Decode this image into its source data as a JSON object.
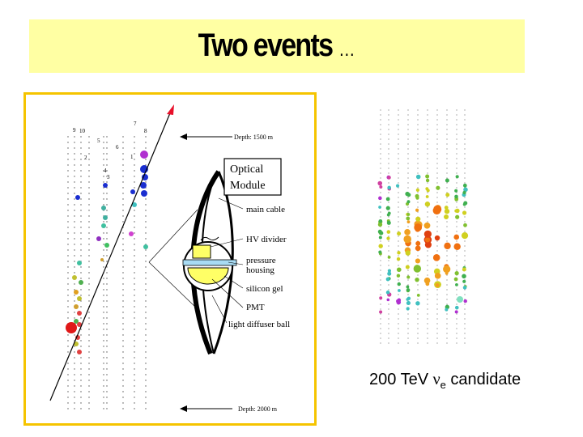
{
  "title": {
    "main": "Two events",
    "ellipsis": "…"
  },
  "left_diagram": {
    "depth_top": "Depth: 1500 m",
    "depth_bottom": "Depth: 2000 m",
    "string_numbers": [
      "9",
      "10",
      "2",
      "5",
      "6",
      "7",
      "8",
      "1",
      "4",
      "3"
    ],
    "module_title_line1": "Optical",
    "module_title_line2": "Module",
    "labels": [
      "main cable",
      "HV divider",
      "pressure",
      "housing",
      "silicon gel",
      "PMT",
      "light diffuser ball"
    ]
  },
  "right_caption": {
    "prefix": "200 TeV ",
    "nu": "ν",
    "sub": "e",
    "suffix": " candidate"
  },
  "colors": {
    "title_bg": "#ffffa3",
    "panel_border": "#f5c400"
  }
}
